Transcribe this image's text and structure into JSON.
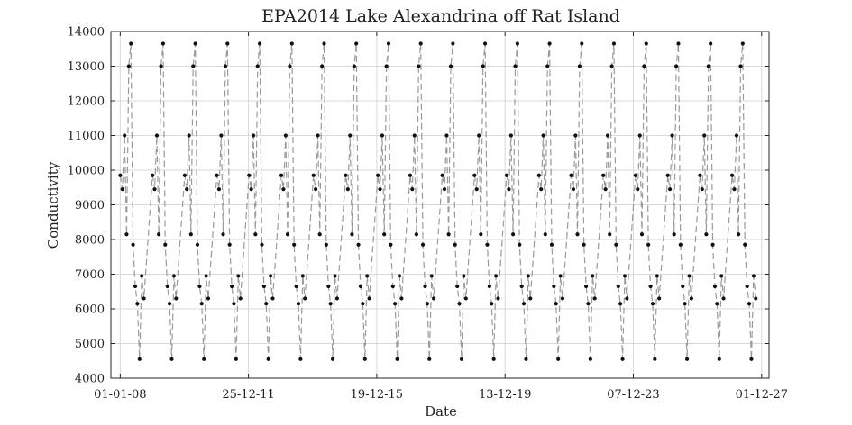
{
  "chart_data": {
    "type": "line",
    "title": "EPA2014 Lake Alexandrina off Rat Island",
    "xlabel": "Date",
    "ylabel": "Conductivity",
    "ylim": [
      4000,
      14000
    ],
    "yticks": [
      4000,
      5000,
      6000,
      7000,
      8000,
      9000,
      10000,
      11000,
      12000,
      13000,
      14000
    ],
    "xlim": [
      "2007-09-17",
      "2028-02-23"
    ],
    "xticks": [
      {
        "date": "2008-01-01",
        "label": "01-01-08"
      },
      {
        "date": "2011-12-25",
        "label": "25-12-11"
      },
      {
        "date": "2015-12-19",
        "label": "19-12-15"
      },
      {
        "date": "2019-12-13",
        "label": "13-12-19"
      },
      {
        "date": "2023-12-07",
        "label": "07-12-23"
      },
      {
        "date": "2027-12-01",
        "label": "01-12-27"
      }
    ],
    "grid": true,
    "cycle_start": "2008-01-01",
    "cycle_count": 20,
    "cycle_year_span": 1.0,
    "cycle_profile": [
      {
        "offset_months": 0.0,
        "value": 9850
      },
      {
        "offset_months": 0.8,
        "value": 9450
      },
      {
        "offset_months": 1.6,
        "value": 11000
      },
      {
        "offset_months": 2.4,
        "value": 8150
      },
      {
        "offset_months": 3.2,
        "value": 13000
      },
      {
        "offset_months": 4.0,
        "value": 13650
      },
      {
        "offset_months": 4.8,
        "value": 7850
      },
      {
        "offset_months": 5.6,
        "value": 6650
      },
      {
        "offset_months": 6.4,
        "value": 6150
      },
      {
        "offset_months": 7.2,
        "value": 4550
      },
      {
        "offset_months": 8.0,
        "value": 6950
      },
      {
        "offset_months": 8.8,
        "value": 6300
      }
    ],
    "series": [
      {
        "name": "",
        "color": "#9a9a9a",
        "marker_color": "#111111"
      }
    ]
  }
}
